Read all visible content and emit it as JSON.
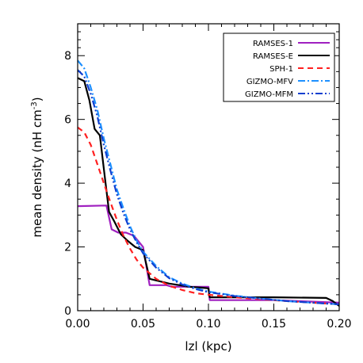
{
  "chart_data": {
    "type": "line",
    "title": "",
    "xlabel": "lzl (kpc)",
    "ylabel": "mean density (nH cm",
    "ylabel_sup": "-3",
    "ylabel_close": ")",
    "xlim": [
      0.0,
      0.2
    ],
    "ylim": [
      0,
      9
    ],
    "xticks": [
      0.0,
      0.05,
      0.1,
      0.15,
      0.2
    ],
    "xtick_labels": [
      "0.00",
      "0.05",
      "0.10",
      "0.15",
      "0.20"
    ],
    "yticks": [
      0,
      2,
      4,
      6,
      8
    ],
    "ytick_labels": [
      "0",
      "2",
      "4",
      "6",
      "8"
    ],
    "grid": false,
    "legend_position": "top-right",
    "series": [
      {
        "name": "RAMSES-1",
        "color": "#a020c0",
        "dash": "solid",
        "x": [
          0.0,
          0.022,
          0.026,
          0.031,
          0.037,
          0.043,
          0.05,
          0.055,
          0.068,
          0.072,
          0.083,
          0.1,
          0.101,
          0.15,
          0.2
        ],
        "y": [
          3.28,
          3.3,
          2.55,
          2.45,
          2.45,
          2.35,
          2.0,
          0.8,
          0.8,
          0.75,
          0.75,
          0.75,
          0.33,
          0.33,
          0.25
        ]
      },
      {
        "name": "RAMSES-E",
        "color": "#000000",
        "dash": "solid",
        "x": [
          0.0,
          0.005,
          0.009,
          0.013,
          0.017,
          0.021,
          0.024,
          0.028,
          0.033,
          0.038,
          0.044,
          0.05,
          0.055,
          0.06,
          0.065,
          0.07,
          0.078,
          0.085,
          0.095,
          0.1,
          0.101,
          0.15,
          0.19,
          0.195,
          0.2
        ],
        "y": [
          7.3,
          7.2,
          6.6,
          5.7,
          5.5,
          4.1,
          3.1,
          2.8,
          2.4,
          2.2,
          2.0,
          1.9,
          1.0,
          0.95,
          0.9,
          0.85,
          0.8,
          0.75,
          0.72,
          0.7,
          0.42,
          0.42,
          0.4,
          0.3,
          0.15
        ]
      },
      {
        "name": "SPH-1",
        "color": "#ff2020",
        "dash": "dashed",
        "x": [
          0.0,
          0.005,
          0.01,
          0.015,
          0.02,
          0.025,
          0.03,
          0.035,
          0.04,
          0.045,
          0.05,
          0.06,
          0.07,
          0.08,
          0.09,
          0.1,
          0.12,
          0.14,
          0.16,
          0.18,
          0.2
        ],
        "y": [
          5.75,
          5.6,
          5.2,
          4.6,
          4.0,
          3.4,
          2.85,
          2.35,
          1.95,
          1.6,
          1.35,
          1.0,
          0.78,
          0.65,
          0.55,
          0.5,
          0.42,
          0.36,
          0.3,
          0.25,
          0.2
        ]
      },
      {
        "name": "GIZMO-MFV",
        "color": "#1e90ff",
        "dash": "dashdot",
        "x": [
          0.0,
          0.005,
          0.01,
          0.015,
          0.02,
          0.025,
          0.03,
          0.035,
          0.04,
          0.045,
          0.05,
          0.06,
          0.07,
          0.08,
          0.09,
          0.1,
          0.12,
          0.14,
          0.16,
          0.18,
          0.2
        ],
        "y": [
          7.85,
          7.6,
          7.0,
          6.3,
          5.4,
          4.6,
          3.8,
          3.2,
          2.65,
          2.2,
          1.85,
          1.4,
          1.05,
          0.85,
          0.7,
          0.6,
          0.47,
          0.38,
          0.3,
          0.25,
          0.2
        ]
      },
      {
        "name": "GIZMO-MFM",
        "color": "#1040d0",
        "dash": "dashdotdot",
        "x": [
          0.0,
          0.005,
          0.01,
          0.015,
          0.02,
          0.025,
          0.03,
          0.035,
          0.04,
          0.045,
          0.05,
          0.06,
          0.07,
          0.08,
          0.09,
          0.1,
          0.12,
          0.14,
          0.16,
          0.18,
          0.2
        ],
        "y": [
          7.55,
          7.35,
          6.8,
          6.1,
          5.2,
          4.4,
          3.65,
          3.05,
          2.55,
          2.15,
          1.8,
          1.35,
          1.02,
          0.82,
          0.68,
          0.58,
          0.46,
          0.38,
          0.3,
          0.25,
          0.2
        ]
      }
    ]
  }
}
